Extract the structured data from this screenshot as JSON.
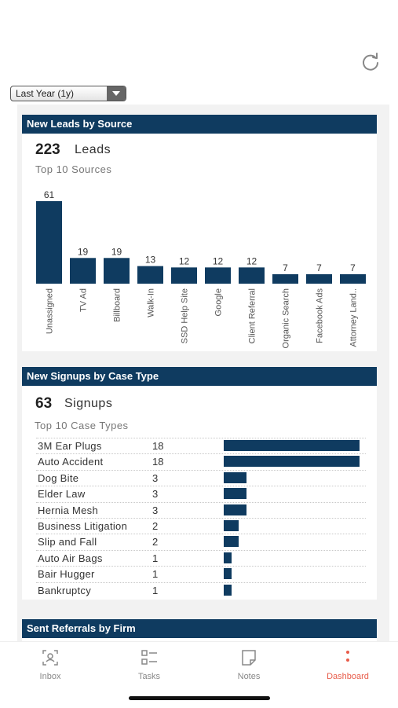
{
  "filter": {
    "selected": "Last Year (1y)"
  },
  "leads_panel": {
    "title": "New Leads by Source",
    "total": "223",
    "unit": "Leads",
    "subtitle": "Top 10 Sources"
  },
  "signups_panel": {
    "title": "New Signups by Case Type",
    "total": "63",
    "unit": "Signups",
    "subtitle": "Top 10 Case Types"
  },
  "referrals_panel": {
    "title": "Sent Referrals by Firm"
  },
  "chart_data": [
    {
      "type": "bar",
      "categories": [
        "Unassigned",
        "TV Ad",
        "Billboard",
        "Walk-In",
        "SSD Help Site",
        "Google",
        "Client Referral",
        "Organic Search",
        "Facebook Ads",
        "Attorney Land.."
      ],
      "values": [
        61,
        19,
        19,
        13,
        12,
        12,
        12,
        7,
        7,
        7
      ],
      "ylim": [
        0,
        61
      ]
    },
    {
      "type": "bar",
      "orientation": "horizontal",
      "categories": [
        "3M Ear Plugs",
        "Auto Accident",
        "Dog Bite",
        "Elder Law",
        "Hernia Mesh",
        "Business Litigation",
        "Slip and Fall",
        "Auto Air Bags",
        "Bair Hugger",
        "Bankruptcy"
      ],
      "values": [
        18,
        18,
        3,
        3,
        3,
        2,
        2,
        1,
        1,
        1
      ],
      "xlim": [
        0,
        18
      ]
    }
  ],
  "tabs": [
    {
      "label": "Inbox",
      "icon": "inbox-icon"
    },
    {
      "label": "Tasks",
      "icon": "tasks-icon"
    },
    {
      "label": "Notes",
      "icon": "notes-icon"
    },
    {
      "label": "Dashboard",
      "icon": "dashboard-icon",
      "active": true
    }
  ],
  "colors": {
    "bar": "#0f3b60",
    "header": "#0f3b60",
    "active_tab": "#e85c4a"
  }
}
